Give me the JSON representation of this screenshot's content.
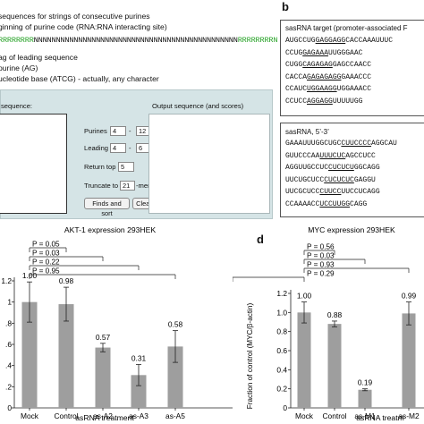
{
  "panel_a": {
    "lines": [
      "sequences for strings of consecutive purines",
      "ginning of purine code (RNA:RNA interacting site)",
      "ag of leading sequence",
      "purine (AG)",
      "ucleotide base (ATCG) - actually, any character"
    ],
    "seq_left": "RRRRRRRR",
    "seq_mid": "NNNNNNNNNNNNNNNNNNNNNNNNNNNNNNNNNNNNNNNNNNNNNN",
    "seq_right": "RRRRRRRRN"
  },
  "form": {
    "input_label": "sequence:",
    "output_label": "Output sequence (and scores)",
    "purines_label": "Purines",
    "purines_min": "4",
    "purines_max": "12",
    "leading_label": "Leading",
    "leading_min": "4",
    "leading_max": "6",
    "dash": "-",
    "return_top_label": "Return top",
    "return_top_value": "5",
    "truncate_label": "Truncate to",
    "truncate_value": "21",
    "truncate_unit": "-mer",
    "find_button": "Finds and sort",
    "clear_button": "Clear"
  },
  "panel_b": {
    "letter": "b",
    "target_title": "sasRNA target (promoter-associated F",
    "target_lines": [
      [
        "AUGCCUG",
        "GAGGAGG",
        "CACCAAAUUUC"
      ],
      [
        "CCUG",
        "GAGAAA",
        "UUGGGAAC"
      ],
      [
        "CUGG",
        "CAGAGAG",
        "GAGCCAACC"
      ],
      [
        "CACCA",
        "GAGAGAGG",
        "GAAACCC"
      ],
      [
        "CCAUC",
        "UGGAAGG",
        "UGGAAACC"
      ],
      [
        "CCUCC",
        "AGGAGG",
        "UUUUUGG"
      ]
    ],
    "sas_title": "sasRNA, 5’-3’",
    "sas_lines": [
      [
        "GAAAUUUGGCUGC",
        "CUUCCCC",
        "AGGCAU"
      ],
      [
        "GUUCCCAA",
        "UUUCUC",
        "AGCCUCC"
      ],
      [
        "AGGUUGCCUC",
        "CUCUCU",
        "GGCAGG"
      ],
      [
        "UUCUGCUCC",
        "CUCUCUC",
        "GAGGU"
      ],
      [
        "UUCGCUCC",
        "CUUCC",
        "UUCCUCAGG"
      ],
      [
        "CCAAAACC",
        "UCCUUGG",
        "CAGG"
      ]
    ]
  },
  "panel_c": {
    "title": "AKT-1 expression 293HEK",
    "xlabel": "asRNA treatment",
    "p_labels": [
      "P = 0.05",
      "P = 0.03",
      "P = 0.22",
      "P = 0.95"
    ]
  },
  "panel_d": {
    "letter": "d",
    "title": "MYC expression 293HEK",
    "ylabel": "Fraction of control (MYC/β-actin)",
    "xlabel": "asRNA treatm",
    "p_labels": [
      "P = 0.56",
      "P = 0.03",
      "P = 0.93",
      "P = 0.29"
    ]
  },
  "chart_data": [
    {
      "type": "bar",
      "title": "AKT-1 expression 293HEK",
      "xlabel": "asRNA treatment",
      "ylabel": "",
      "categories": [
        "Mock",
        "Control",
        "as-A2",
        "as-A3",
        "as-A5"
      ],
      "values": [
        1.0,
        0.98,
        0.57,
        0.31,
        0.58
      ],
      "errors": [
        0.19,
        0.16,
        0.04,
        0.1,
        0.15
      ],
      "value_labels": [
        "1.00",
        "0.98",
        "0.57",
        "0.31",
        "0.58"
      ],
      "ylim": [
        0,
        1.2
      ],
      "yticks": [
        "0",
        ".2",
        ".4",
        ".6",
        ".8",
        "1",
        "1.2"
      ],
      "color": "#9e9e9e"
    },
    {
      "type": "bar",
      "title": "MYC expression 293HEK",
      "xlabel": "asRNA treatm",
      "ylabel": "Fraction of control (MYC/β-actin)",
      "categories": [
        "Mock",
        "Control",
        "as-M1",
        "as-M2"
      ],
      "values": [
        1.0,
        0.88,
        0.19,
        0.99
      ],
      "errors": [
        0.11,
        0.03,
        0.01,
        0.12
      ],
      "value_labels": [
        "1.00",
        "0.88",
        "0.19",
        "0.99"
      ],
      "ylim": [
        0,
        1.2
      ],
      "yticks": [
        "0",
        "0.2",
        "0.4",
        "0.6",
        "0.8",
        "1.0",
        "1.2"
      ],
      "color": "#9e9e9e"
    }
  ]
}
